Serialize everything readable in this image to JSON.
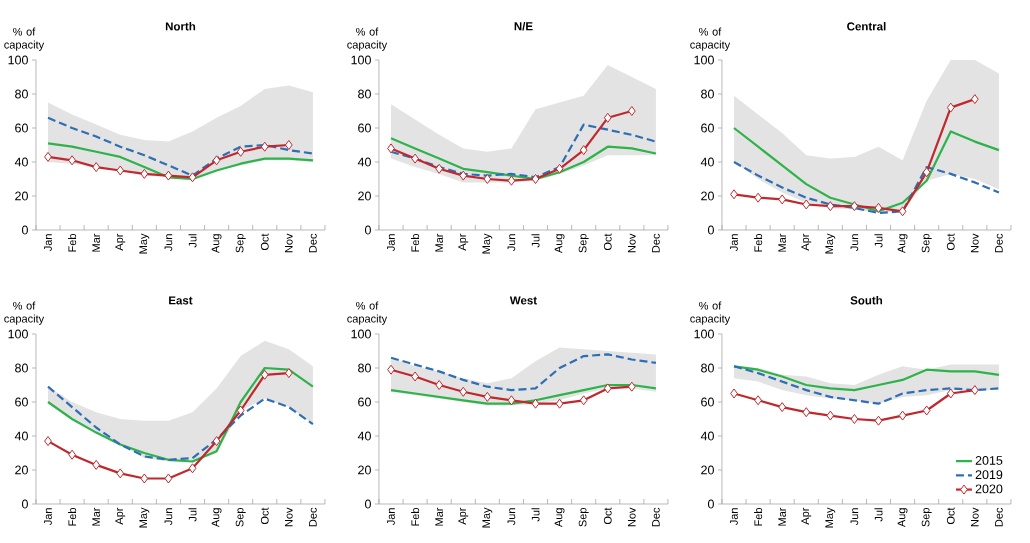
{
  "chart_data": [
    {
      "type": "line",
      "title": "North",
      "ylabel": "% of capacity",
      "categories": [
        "Jan",
        "Feb",
        "Mar",
        "Apr",
        "May",
        "Jun",
        "Jul",
        "Aug",
        "Sep",
        "Oct",
        "Nov",
        "Dec"
      ],
      "ylim": [
        0,
        100
      ],
      "yticks": [
        0,
        20,
        40,
        60,
        80,
        100
      ],
      "grid": false,
      "legend": false,
      "series": [
        {
          "color": "#2db34a",
          "line_style": "solid",
          "marker": "none",
          "values": [
            51,
            49,
            46,
            43,
            37,
            31,
            30,
            35,
            39,
            42,
            42,
            41
          ],
          "lower": [
            40,
            39,
            37,
            35,
            32,
            31,
            29,
            35,
            38,
            41,
            41,
            40
          ],
          "upper": [
            75,
            68,
            62,
            56,
            53,
            52,
            58,
            66,
            73,
            83,
            85,
            81
          ]
        },
        {
          "color": "#2e6eb5",
          "line_style": "dashed",
          "marker": "none",
          "values": [
            66,
            60,
            55,
            49,
            44,
            38,
            32,
            42,
            49,
            50,
            47,
            45
          ]
        },
        {
          "color": "#c0282d",
          "line_style": "solid",
          "marker": "diamond",
          "values": [
            43,
            41,
            37,
            35,
            33,
            32,
            31,
            41,
            46,
            49,
            50,
            null
          ]
        }
      ]
    },
    {
      "type": "line",
      "title": "N/E",
      "ylabel": "% of capacity",
      "categories": [
        "Jan",
        "Feb",
        "Mar",
        "Apr",
        "May",
        "Jun",
        "Jul",
        "Aug",
        "Sep",
        "Oct",
        "Nov",
        "Dec"
      ],
      "ylim": [
        0,
        100
      ],
      "yticks": [
        0,
        20,
        40,
        60,
        80,
        100
      ],
      "grid": false,
      "legend": false,
      "series": [
        {
          "color": "#2db34a",
          "line_style": "solid",
          "marker": "none",
          "values": [
            54,
            48,
            42,
            36,
            34,
            32,
            30,
            34,
            40,
            49,
            48,
            45
          ],
          "lower": [
            42,
            37,
            33,
            28,
            28,
            28,
            29,
            33,
            38,
            44,
            44,
            44
          ],
          "upper": [
            74,
            65,
            56,
            48,
            46,
            48,
            71,
            75,
            79,
            97,
            90,
            83
          ]
        },
        {
          "color": "#2e6eb5",
          "line_style": "dashed",
          "marker": "none",
          "values": [
            46,
            42,
            37,
            33,
            32,
            33,
            31,
            37,
            62,
            59,
            56,
            52
          ]
        },
        {
          "color": "#c0282d",
          "line_style": "solid",
          "marker": "diamond",
          "values": [
            48,
            42,
            36,
            32,
            30,
            29,
            30,
            36,
            47,
            66,
            70,
            null
          ]
        }
      ]
    },
    {
      "type": "line",
      "title": "Central",
      "ylabel": "% of capacity",
      "categories": [
        "Jan",
        "Feb",
        "Mar",
        "Apr",
        "May",
        "Jun",
        "Jul",
        "Aug",
        "Sep",
        "Oct",
        "Nov",
        "Dec"
      ],
      "ylim": [
        0,
        100
      ],
      "yticks": [
        0,
        20,
        40,
        60,
        80,
        100
      ],
      "grid": false,
      "legend": false,
      "series": [
        {
          "color": "#2db34a",
          "line_style": "solid",
          "marker": "none",
          "values": [
            60,
            49,
            38,
            27,
            19,
            15,
            11,
            16,
            29,
            58,
            52,
            47
          ],
          "lower": [
            40,
            30,
            22,
            16,
            13,
            12,
            10,
            11,
            29,
            33,
            30,
            24
          ],
          "upper": [
            79,
            68,
            57,
            44,
            42,
            43,
            49,
            41,
            76,
            100,
            100,
            92
          ]
        },
        {
          "color": "#2e6eb5",
          "line_style": "dashed",
          "marker": "none",
          "values": [
            40,
            32,
            25,
            19,
            15,
            13,
            10,
            11,
            37,
            33,
            28,
            22
          ]
        },
        {
          "color": "#c0282d",
          "line_style": "solid",
          "marker": "diamond",
          "values": [
            21,
            19,
            18,
            15,
            14,
            14,
            13,
            11,
            34,
            72,
            77,
            null
          ]
        }
      ]
    },
    {
      "type": "line",
      "title": "East",
      "ylabel": "% of capacity",
      "categories": [
        "Jan",
        "Feb",
        "Mar",
        "Apr",
        "May",
        "Jun",
        "Jul",
        "Aug",
        "Sep",
        "Oct",
        "Nov",
        "Dec"
      ],
      "ylim": [
        0,
        100
      ],
      "yticks": [
        0,
        20,
        40,
        60,
        80,
        100
      ],
      "grid": false,
      "legend": false,
      "series": [
        {
          "color": "#2db34a",
          "line_style": "solid",
          "marker": "none",
          "values": [
            60,
            50,
            42,
            35,
            30,
            26,
            25,
            31,
            60,
            80,
            79,
            69
          ],
          "lower": [
            59,
            50,
            42,
            35,
            27,
            25,
            25,
            30,
            55,
            62,
            57,
            47
          ],
          "upper": [
            69,
            60,
            54,
            50,
            49,
            49,
            54,
            68,
            87,
            96,
            91,
            81
          ]
        },
        {
          "color": "#2e6eb5",
          "line_style": "dashed",
          "marker": "none",
          "values": [
            69,
            57,
            45,
            35,
            28,
            26,
            27,
            38,
            52,
            62,
            57,
            47
          ]
        },
        {
          "color": "#c0282d",
          "line_style": "solid",
          "marker": "diamond",
          "values": [
            37,
            29,
            23,
            18,
            15,
            15,
            21,
            37,
            55,
            76,
            77,
            null
          ]
        }
      ]
    },
    {
      "type": "line",
      "title": "West",
      "ylabel": "% of capacity",
      "categories": [
        "Jan",
        "Feb",
        "Mar",
        "Apr",
        "May",
        "Jun",
        "Jul",
        "Aug",
        "Sep",
        "Oct",
        "Nov",
        "Dec"
      ],
      "ylim": [
        0,
        100
      ],
      "yticks": [
        0,
        20,
        40,
        60,
        80,
        100
      ],
      "grid": false,
      "legend": false,
      "series": [
        {
          "color": "#2db34a",
          "line_style": "solid",
          "marker": "none",
          "values": [
            67,
            65,
            63,
            61,
            59,
            59,
            61,
            64,
            67,
            70,
            70,
            68
          ],
          "lower": [
            66,
            64,
            62,
            60,
            58,
            58,
            59,
            61,
            65,
            68,
            68,
            66
          ],
          "upper": [
            86,
            81,
            78,
            74,
            71,
            74,
            84,
            92,
            91,
            90,
            89,
            88
          ]
        },
        {
          "color": "#2e6eb5",
          "line_style": "dashed",
          "marker": "none",
          "values": [
            86,
            82,
            78,
            73,
            69,
            67,
            68,
            80,
            87,
            88,
            85,
            83
          ]
        },
        {
          "color": "#c0282d",
          "line_style": "solid",
          "marker": "diamond",
          "values": [
            79,
            75,
            70,
            66,
            63,
            61,
            59,
            59,
            61,
            68,
            69,
            null
          ]
        }
      ]
    },
    {
      "type": "line",
      "title": "South",
      "ylabel": "% of capacity",
      "categories": [
        "Jan",
        "Feb",
        "Mar",
        "Apr",
        "May",
        "Jun",
        "Jul",
        "Aug",
        "Sep",
        "Oct",
        "Nov",
        "Dec"
      ],
      "ylim": [
        0,
        100
      ],
      "yticks": [
        0,
        20,
        40,
        60,
        80,
        100
      ],
      "grid": false,
      "legend": "bottom right",
      "series": [
        {
          "name": "2015",
          "color": "#2db34a",
          "line_style": "solid",
          "marker": "none",
          "values": [
            81,
            79,
            75,
            70,
            68,
            67,
            70,
            73,
            79,
            78,
            78,
            76
          ],
          "lower": [
            74,
            72,
            67,
            64,
            62,
            61,
            59,
            63,
            64,
            67,
            67,
            67
          ],
          "upper": [
            81,
            80,
            76,
            75,
            71,
            70,
            76,
            81,
            79,
            82,
            82,
            82
          ]
        },
        {
          "name": "2019",
          "color": "#2e6eb5",
          "line_style": "dashed",
          "marker": "none",
          "values": [
            81,
            77,
            72,
            67,
            63,
            61,
            59,
            65,
            67,
            68,
            67,
            68
          ]
        },
        {
          "name": "2020",
          "color": "#c0282d",
          "line_style": "solid",
          "marker": "diamond",
          "values": [
            65,
            61,
            57,
            54,
            52,
            50,
            49,
            52,
            55,
            65,
            67,
            null
          ]
        }
      ]
    }
  ]
}
